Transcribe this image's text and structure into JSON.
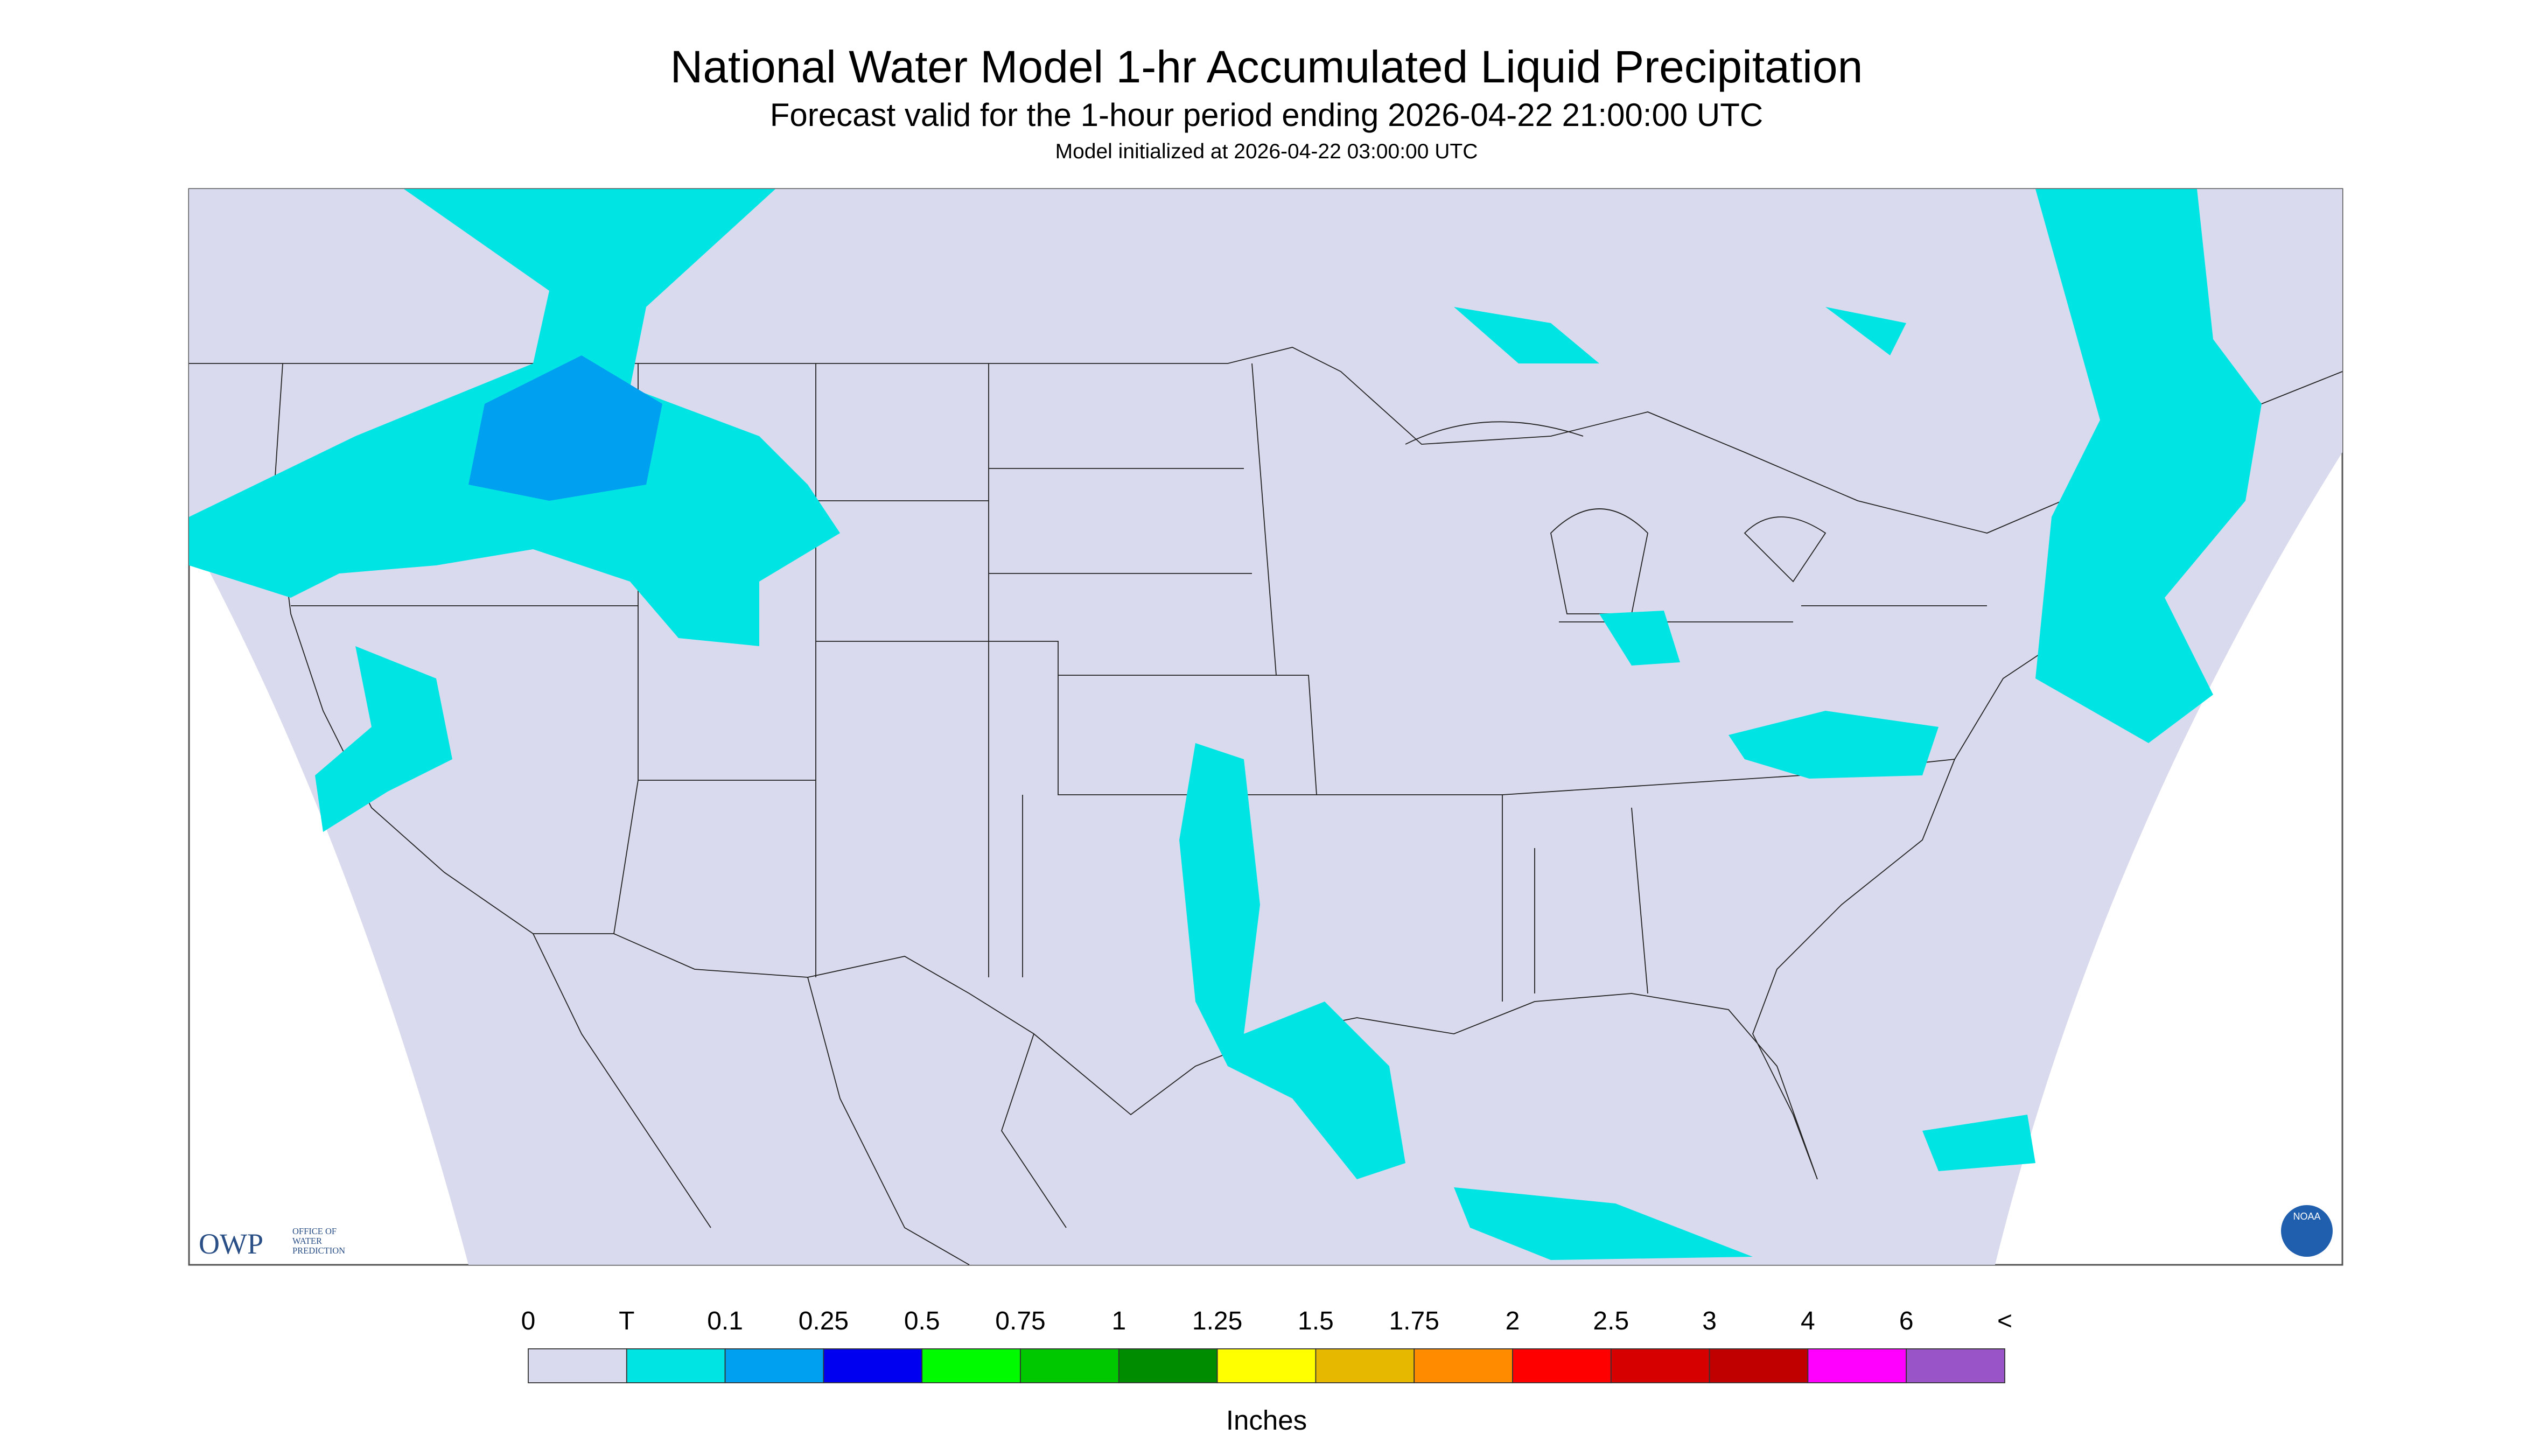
{
  "header": {
    "title": "National Water Model 1-hr Accumulated Liquid Precipitation",
    "subtitle": "Forecast valid for the 1-hour period ending 2026-04-22 21:00:00 UTC",
    "initialized": "Model initialized at 2026-04-22 03:00:00 UTC"
  },
  "legend": {
    "labels": [
      "0",
      "T",
      "0.1",
      "0.25",
      "0.5",
      "0.75",
      "1",
      "1.25",
      "1.5",
      "1.75",
      "2",
      "2.5",
      "3",
      "4",
      "6",
      "<"
    ],
    "colors": [
      "#dadaee",
      "#00e4e4",
      "#00a0f0",
      "#0000f0",
      "#00fa00",
      "#00c800",
      "#008c00",
      "#ffff00",
      "#e6b800",
      "#ff8c00",
      "#ff0000",
      "#d70000",
      "#c00000",
      "#ff00ff",
      "#9955c8"
    ],
    "units": "Inches"
  },
  "logo": {
    "abbr": "OWP",
    "line1": "OFFICE OF",
    "line2": "WATER",
    "line3": "PREDICTION",
    "agency": "NOAA"
  }
}
